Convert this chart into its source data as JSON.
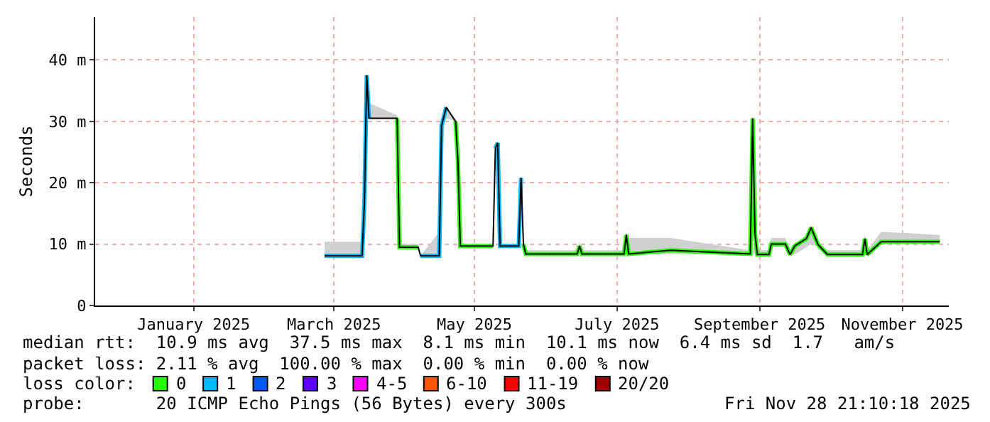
{
  "chart_data": {
    "type": "line",
    "ylabel": "Seconds",
    "legend_title": "loss color:",
    "legend": "bottom",
    "grid": true,
    "marker": "none",
    "xlim": [
      "2024-11-28T21:10",
      "2025-11-28T21:10"
    ],
    "xticks": [
      {
        "value": "2025-01-10",
        "label": "January 2025"
      },
      {
        "value": "2025-03-11",
        "label": "March 2025"
      },
      {
        "value": "2025-05-10",
        "label": "May 2025"
      },
      {
        "value": "2025-07-10",
        "label": "July 2025"
      },
      {
        "value": "2025-09-09",
        "label": "September 2025"
      },
      {
        "value": "2025-11-09",
        "label": "November 2025"
      }
    ],
    "ylim": [
      0,
      47
    ],
    "yticks": [
      0,
      {
        "value": 10,
        "label": "10 m"
      },
      {
        "value": 20,
        "label": "20 m"
      },
      {
        "value": 30,
        "label": "30 m"
      },
      {
        "value": 40,
        "label": "40 m"
      }
    ],
    "x": [
      "2025-03-07",
      "2025-03-23",
      "2025-03-24",
      "2025-03-25",
      "2025-03-26",
      "2025-04-07",
      "2025-04-08",
      "2025-04-16",
      "2025-04-17",
      "2025-04-25",
      "2025-04-26",
      "2025-04-28",
      "2025-05-02",
      "2025-05-03",
      "2025-05-04",
      "2025-05-18",
      "2025-05-19",
      "2025-05-20",
      "2025-05-21",
      "2025-05-29",
      "2025-05-30",
      "2025-05-31",
      "2025-06-01",
      "2025-06-23",
      "2025-06-24",
      "2025-06-25",
      "2025-07-13",
      "2025-07-14",
      "2025-07-15",
      "2025-08-02",
      "2025-09-05",
      "2025-09-06",
      "2025-09-07",
      "2025-09-08",
      "2025-09-13",
      "2025-09-14",
      "2025-09-20",
      "2025-09-22",
      "2025-09-24",
      "2025-09-29",
      "2025-10-01",
      "2025-10-04",
      "2025-10-08",
      "2025-10-23",
      "2025-10-24",
      "2025-10-25",
      "2025-10-31",
      "2025-11-25"
    ],
    "series": [
      {
        "color": "#000000",
        "values": [
          8.1,
          8.1,
          16.7,
          37.5,
          30.5,
          30.5,
          9.5,
          9.5,
          8.1,
          8.1,
          29.3,
          32.3,
          30.0,
          23.5,
          9.7,
          9.7,
          25.6,
          26.5,
          9.7,
          9.7,
          20.8,
          10.0,
          8.4,
          8.4,
          9.7,
          8.4,
          8.4,
          11.5,
          8.4,
          9.0,
          8.4,
          30.5,
          11.7,
          8.3,
          8.3,
          10.0,
          10.0,
          8.3,
          9.7,
          10.9,
          12.7,
          9.9,
          8.3,
          8.3,
          10.9,
          8.3,
          10.4,
          10.4
        ],
        "lower": [
          8.1,
          8.1,
          16.7,
          30.5,
          30.5,
          30.5,
          9.5,
          9.5,
          8.1,
          8.1,
          29.3,
          30.5,
          30.0,
          23.5,
          9.7,
          9.7,
          25.6,
          26.5,
          9.7,
          9.7,
          20.8,
          10.0,
          8.4,
          8.4,
          8.4,
          8.4,
          8.4,
          8.4,
          8.4,
          8.4,
          8.4,
          8.4,
          8.4,
          8.3,
          8.3,
          9.5,
          9.5,
          8.3,
          8.3,
          9.5,
          10.0,
          9.5,
          8.3,
          8.3,
          8.3,
          8.3,
          10.0,
          10.0
        ],
        "upper": [
          10.4,
          10.4,
          16.7,
          33.0,
          33.0,
          31.0,
          10.0,
          10.0,
          8.1,
          12.0,
          29.3,
          32.3,
          30.0,
          23.5,
          10.0,
          10.0,
          25.6,
          26.5,
          10.0,
          10.0,
          20.8,
          10.0,
          9.0,
          9.0,
          10.5,
          9.0,
          9.0,
          12.0,
          11.0,
          11.0,
          9.0,
          9.0,
          11.7,
          9.0,
          9.0,
          11.0,
          11.0,
          9.0,
          10.0,
          11.5,
          13.0,
          10.5,
          9.0,
          9.0,
          11.5,
          9.0,
          12.0,
          11.5
        ]
      },
      {
        "name": "0",
        "color": "#26ff00",
        "values": [
          null,
          null,
          null,
          null,
          null,
          30.5,
          9.5,
          9.5,
          null,
          null,
          null,
          null,
          30.0,
          23.5,
          9.7,
          9.7,
          null,
          null,
          null,
          null,
          null,
          10.0,
          8.4,
          8.4,
          9.7,
          8.4,
          8.4,
          11.5,
          8.4,
          9.0,
          8.4,
          30.5,
          11.7,
          8.3,
          8.3,
          10.0,
          10.0,
          8.3,
          9.7,
          10.9,
          12.7,
          9.9,
          8.3,
          8.3,
          10.9,
          8.3,
          10.4,
          10.4
        ]
      },
      {
        "name": "1",
        "color": "#00b8ff",
        "values": [
          8.1,
          8.1,
          16.7,
          37.5,
          30.5,
          null,
          null,
          null,
          8.1,
          8.1,
          29.3,
          32.3,
          null,
          null,
          null,
          null,
          25.6,
          26.5,
          9.7,
          9.7,
          20.8,
          null,
          null,
          null,
          null,
          null,
          null,
          null,
          null,
          null,
          null,
          null,
          null,
          null,
          null,
          null,
          null,
          null,
          null,
          null,
          null,
          null,
          null,
          null,
          null,
          null,
          null,
          null
        ]
      },
      {
        "name": "2",
        "color": "#0059ff",
        "values": [
          null,
          null,
          null,
          null,
          null,
          null,
          null,
          null,
          null,
          null,
          null,
          null,
          null,
          null,
          null,
          null,
          null,
          null,
          null,
          null,
          null,
          null,
          null,
          null,
          null,
          null,
          null,
          null,
          null,
          null,
          null,
          null,
          null,
          null,
          null,
          null,
          null,
          null,
          null,
          null,
          null,
          null,
          null,
          null,
          null,
          null,
          null,
          null
        ]
      },
      {
        "name": "3",
        "color": "#5e00ff",
        "values": [
          null,
          null,
          null,
          null,
          null,
          null,
          null,
          null,
          null,
          null,
          null,
          null,
          null,
          null,
          null,
          null,
          null,
          null,
          null,
          null,
          null,
          null,
          null,
          null,
          null,
          null,
          null,
          null,
          null,
          null,
          null,
          null,
          null,
          null,
          null,
          null,
          null,
          null,
          null,
          null,
          null,
          null,
          null,
          null,
          null,
          null,
          null,
          null
        ]
      },
      {
        "name": "4-5",
        "color": "#ff00ff",
        "values": [
          null,
          null,
          null,
          null,
          null,
          null,
          null,
          null,
          null,
          null,
          null,
          null,
          null,
          null,
          null,
          null,
          null,
          null,
          null,
          null,
          null,
          null,
          null,
          null,
          null,
          null,
          null,
          null,
          null,
          null,
          null,
          null,
          null,
          null,
          null,
          null,
          null,
          null,
          null,
          null,
          null,
          null,
          null,
          null,
          null,
          null,
          null,
          null
        ]
      },
      {
        "name": "6-10",
        "color": "#ff5500",
        "values": [
          null,
          null,
          null,
          null,
          null,
          null,
          null,
          null,
          null,
          null,
          null,
          null,
          null,
          null,
          null,
          null,
          null,
          null,
          null,
          null,
          null,
          null,
          null,
          null,
          null,
          null,
          null,
          null,
          null,
          null,
          null,
          null,
          null,
          null,
          null,
          null,
          null,
          null,
          null,
          null,
          null,
          null,
          null,
          null,
          null,
          null,
          null,
          null
        ]
      },
      {
        "name": "11-19",
        "color": "#ff0000",
        "values": [
          null,
          null,
          null,
          null,
          null,
          null,
          null,
          null,
          null,
          null,
          null,
          null,
          null,
          null,
          null,
          null,
          null,
          null,
          null,
          null,
          null,
          null,
          null,
          null,
          null,
          null,
          null,
          null,
          null,
          null,
          null,
          null,
          null,
          null,
          null,
          null,
          null,
          null,
          null,
          null,
          null,
          null,
          null,
          null,
          null,
          null,
          null,
          null
        ]
      },
      {
        "name": "20/20",
        "color": "#a10000",
        "values": [
          null,
          null,
          null,
          null,
          null,
          null,
          null,
          null,
          null,
          null,
          null,
          null,
          null,
          null,
          null,
          null,
          null,
          null,
          null,
          null,
          null,
          null,
          null,
          null,
          null,
          null,
          null,
          null,
          null,
          null,
          null,
          null,
          null,
          null,
          null,
          null,
          null,
          null,
          null,
          null,
          null,
          null,
          null,
          null,
          null,
          null,
          null,
          null
        ]
      }
    ],
    "annotations": [
      "median rtt:  10.9 ms avg  37.5 ms max  8.1 ms min  10.1 ms now  6.4 ms sd  1.7   am/s",
      "packet loss: 2.11 % avg  100.00 % max  0.00 % min  0.00 % now",
      "probe:       20 ICMP Echo Pings (56 Bytes) every 300s",
      "Fri Nov 28 21:10:18 2025"
    ]
  }
}
